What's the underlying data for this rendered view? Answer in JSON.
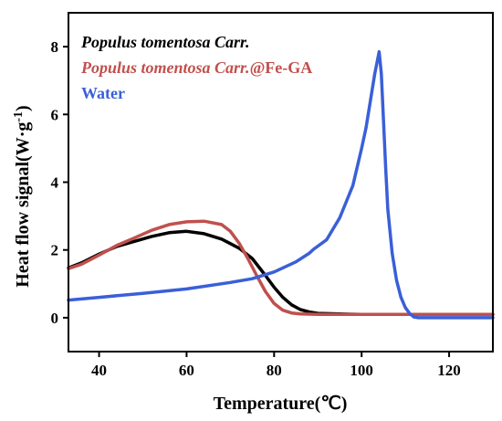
{
  "chart_data": {
    "type": "line",
    "title": "",
    "xlabel": "Temperature(℃)",
    "ylabel": "Heat flow signal(W·g-1)",
    "ylabel_main": "Heat flow signal(W·g",
    "ylabel_sup": "-1",
    "ylabel_close": ")",
    "xlim": [
      33,
      130
    ],
    "ylim": [
      -1,
      9
    ],
    "xticks": [
      40,
      60,
      80,
      100,
      120
    ],
    "yticks": [
      0,
      2,
      4,
      6,
      8
    ],
    "grid": false,
    "legend_position": "top-left",
    "series": [
      {
        "name": "Populus tomentosa Carr.",
        "legend_italic": "Populus tomentosa Carr.",
        "legend_suffix": "",
        "color": "#000000",
        "x": [
          33,
          36,
          40,
          44,
          48,
          52,
          56,
          60,
          64,
          68,
          72,
          75,
          78,
          80,
          82,
          84,
          86,
          88,
          90,
          95,
          100,
          110,
          120,
          130
        ],
        "y": [
          1.47,
          1.62,
          1.88,
          2.1,
          2.25,
          2.4,
          2.51,
          2.55,
          2.48,
          2.32,
          2.05,
          1.75,
          1.25,
          0.9,
          0.6,
          0.38,
          0.24,
          0.17,
          0.13,
          0.11,
          0.1,
          0.1,
          0.1,
          0.1
        ]
      },
      {
        "name": "Populus tomentosa Carr.@Fe-GA",
        "legend_italic": "Populus tomentosa Carr.",
        "legend_suffix": "@Fe-GA",
        "color": "#c0504d",
        "x": [
          33,
          36,
          40,
          44,
          48,
          52,
          56,
          60,
          64,
          68,
          70,
          72,
          74,
          76,
          78,
          80,
          82,
          84,
          86,
          90,
          95,
          100,
          110,
          120,
          130
        ],
        "y": [
          1.45,
          1.58,
          1.85,
          2.13,
          2.35,
          2.58,
          2.75,
          2.83,
          2.85,
          2.75,
          2.55,
          2.2,
          1.75,
          1.25,
          0.78,
          0.42,
          0.22,
          0.14,
          0.11,
          0.1,
          0.1,
          0.1,
          0.1,
          0.1,
          0.1
        ]
      },
      {
        "name": "Water",
        "legend_italic": "",
        "legend_suffix": "Water",
        "color": "#3a5fd8",
        "x": [
          33,
          40,
          50,
          60,
          70,
          75,
          80,
          85,
          88,
          89,
          92,
          95,
          98,
          100,
          101,
          102,
          103,
          104,
          104.5,
          105,
          105.5,
          106,
          107,
          108,
          109,
          110,
          111,
          112,
          113,
          120,
          130
        ],
        "y": [
          0.52,
          0.6,
          0.72,
          0.85,
          1.04,
          1.15,
          1.35,
          1.65,
          1.9,
          2.02,
          2.3,
          2.95,
          3.9,
          5.0,
          5.6,
          6.4,
          7.2,
          7.85,
          7.2,
          5.8,
          4.4,
          3.2,
          1.9,
          1.1,
          0.6,
          0.3,
          0.12,
          0.02,
          0.0,
          0.0,
          0.0
        ]
      }
    ]
  }
}
